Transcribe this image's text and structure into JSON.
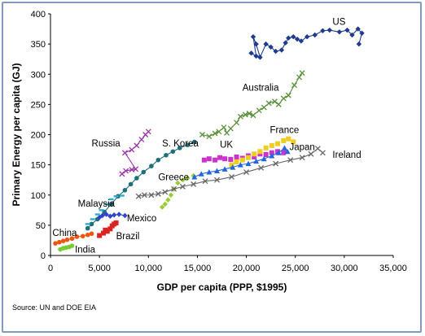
{
  "chart_data": {
    "type": "scatter",
    "title": "",
    "xlabel": "GDP per capita (PPP, $1995)",
    "ylabel": "Primary Energy per capita (GJ)",
    "xlim": [
      0,
      35000
    ],
    "ylim": [
      0,
      400
    ],
    "x_ticks": [
      "0",
      "5,000",
      "10,000",
      "15,000",
      "20,000",
      "25,000",
      "30,000",
      "35,000"
    ],
    "y_ticks": [
      "0",
      "50",
      "100",
      "150",
      "200",
      "250",
      "300",
      "350",
      "400"
    ],
    "grid": false,
    "series": [
      {
        "name": "US",
        "color": "#1f3a8f",
        "marker": "diamond",
        "connected": true,
        "points": [
          [
            20500,
            335
          ],
          [
            21000,
            330
          ],
          [
            20700,
            362
          ],
          [
            21000,
            350
          ],
          [
            21400,
            328
          ],
          [
            22000,
            350
          ],
          [
            22500,
            345
          ],
          [
            23000,
            338
          ],
          [
            23600,
            340
          ],
          [
            24000,
            352
          ],
          [
            24300,
            360
          ],
          [
            24800,
            362
          ],
          [
            25200,
            358
          ],
          [
            25600,
            355
          ],
          [
            26200,
            362
          ],
          [
            27000,
            365
          ],
          [
            27800,
            372
          ],
          [
            28500,
            373
          ],
          [
            29500,
            370
          ],
          [
            30300,
            373
          ],
          [
            30800,
            365
          ],
          [
            31400,
            375
          ],
          [
            31800,
            368
          ],
          [
            31500,
            350
          ]
        ]
      },
      {
        "name": "Australia",
        "color": "#5a8f3a",
        "marker": "x",
        "connected": true,
        "points": [
          [
            15500,
            200
          ],
          [
            16200,
            197
          ],
          [
            16800,
            202
          ],
          [
            17200,
            205
          ],
          [
            17700,
            212
          ],
          [
            18000,
            203
          ],
          [
            18400,
            210
          ],
          [
            19000,
            220
          ],
          [
            19400,
            230
          ],
          [
            19900,
            233
          ],
          [
            20300,
            235
          ],
          [
            20700,
            232
          ],
          [
            21300,
            240
          ],
          [
            21800,
            245
          ],
          [
            22300,
            252
          ],
          [
            22900,
            255
          ],
          [
            23300,
            250
          ],
          [
            23800,
            260
          ],
          [
            24300,
            265
          ],
          [
            24900,
            282
          ],
          [
            25400,
            295
          ],
          [
            25700,
            302
          ]
        ]
      },
      {
        "name": "Russia",
        "color": "#9933aa",
        "marker": "x",
        "connected": true,
        "points": [
          [
            7300,
            135
          ],
          [
            7700,
            140
          ],
          [
            8300,
            142
          ],
          [
            8700,
            143
          ],
          [
            7600,
            170
          ],
          [
            8300,
            175
          ],
          [
            8800,
            182
          ],
          [
            9300,
            192
          ],
          [
            9700,
            200
          ],
          [
            10000,
            205
          ]
        ]
      },
      {
        "name": "S. Korea",
        "color": "#1e6f7a",
        "marker": "circle",
        "connected": true,
        "points": [
          [
            3800,
            45
          ],
          [
            4200,
            52
          ],
          [
            4800,
            60
          ],
          [
            5500,
            72
          ],
          [
            6200,
            85
          ],
          [
            6900,
            98
          ],
          [
            7600,
            108
          ],
          [
            8200,
            118
          ],
          [
            8800,
            128
          ],
          [
            9500,
            138
          ],
          [
            10300,
            148
          ],
          [
            11000,
            158
          ],
          [
            11800,
            166
          ],
          [
            12500,
            172
          ],
          [
            13200,
            178
          ],
          [
            14000,
            183
          ],
          [
            14700,
            188
          ]
        ]
      },
      {
        "name": "Malaysia",
        "color": "#33aacc",
        "marker": "dash",
        "connected": false,
        "points": [
          [
            3800,
            52
          ],
          [
            4300,
            60
          ],
          [
            4800,
            68
          ],
          [
            5200,
            75
          ],
          [
            5700,
            85
          ],
          [
            6200,
            93
          ],
          [
            6700,
            98
          ],
          [
            7300,
            99
          ]
        ]
      },
      {
        "name": "Mexico",
        "color": "#3344cc",
        "marker": "diamond",
        "connected": true,
        "points": [
          [
            5000,
            63
          ],
          [
            5300,
            66
          ],
          [
            5700,
            68
          ],
          [
            6100,
            65
          ],
          [
            6500,
            67
          ],
          [
            7000,
            68
          ],
          [
            7600,
            66
          ]
        ]
      },
      {
        "name": "China",
        "color": "#ee5511",
        "marker": "circle",
        "connected": true,
        "points": [
          [
            500,
            20
          ],
          [
            900,
            22
          ],
          [
            1300,
            24
          ],
          [
            1700,
            26
          ],
          [
            2200,
            28
          ],
          [
            2700,
            31
          ],
          [
            3300,
            32
          ],
          [
            3800,
            34
          ],
          [
            4200,
            36
          ]
        ]
      },
      {
        "name": "India",
        "color": "#77cc33",
        "marker": "circle",
        "connected": true,
        "points": [
          [
            1000,
            10
          ],
          [
            1300,
            12
          ],
          [
            1600,
            13
          ],
          [
            1900,
            14
          ],
          [
            2200,
            16
          ]
        ]
      },
      {
        "name": "Brazil",
        "color": "#dd2222",
        "marker": "square",
        "connected": false,
        "points": [
          [
            5000,
            33
          ],
          [
            5400,
            37
          ],
          [
            5800,
            40
          ],
          [
            6100,
            44
          ],
          [
            6300,
            49
          ],
          [
            6500,
            52
          ],
          [
            6700,
            54
          ],
          [
            5600,
            42
          ]
        ]
      },
      {
        "name": "Greece",
        "color": "#99cc33",
        "marker": "diamond",
        "connected": false,
        "points": [
          [
            11400,
            80
          ],
          [
            11700,
            85
          ],
          [
            12000,
            92
          ],
          [
            12300,
            100
          ],
          [
            12600,
            110
          ],
          [
            13000,
            120
          ],
          [
            13500,
            125
          ],
          [
            14000,
            128
          ],
          [
            14600,
            132
          ]
        ]
      },
      {
        "name": "Ireland",
        "color": "#666666",
        "marker": "x",
        "connected": true,
        "points": [
          [
            9000,
            98
          ],
          [
            9600,
            100
          ],
          [
            10300,
            100
          ],
          [
            11000,
            102
          ],
          [
            11700,
            105
          ],
          [
            12600,
            110
          ],
          [
            13500,
            114
          ],
          [
            14600,
            118
          ],
          [
            15800,
            123
          ],
          [
            17000,
            125
          ],
          [
            18500,
            130
          ],
          [
            20000,
            138
          ],
          [
            21500,
            145
          ],
          [
            23000,
            152
          ],
          [
            24500,
            158
          ],
          [
            25700,
            162
          ],
          [
            26600,
            168
          ],
          [
            27300,
            177
          ],
          [
            27800,
            170
          ]
        ]
      },
      {
        "name": "UK",
        "color": "#cc33cc",
        "marker": "square",
        "connected": false,
        "points": [
          [
            15700,
            158
          ],
          [
            16200,
            160
          ],
          [
            16800,
            158
          ],
          [
            17300,
            162
          ],
          [
            17800,
            160
          ],
          [
            18400,
            159
          ],
          [
            19000,
            163
          ],
          [
            19600,
            161
          ],
          [
            20200,
            165
          ],
          [
            20800,
            163
          ],
          [
            21400,
            168
          ],
          [
            22000,
            167
          ],
          [
            22600,
            170
          ],
          [
            23200,
            172
          ],
          [
            23800,
            170
          ]
        ]
      },
      {
        "name": "France",
        "color": "#eecc22",
        "marker": "square",
        "connected": false,
        "points": [
          [
            18500,
            150
          ],
          [
            19000,
            155
          ],
          [
            19600,
            158
          ],
          [
            20200,
            162
          ],
          [
            20800,
            168
          ],
          [
            21400,
            172
          ],
          [
            22000,
            178
          ],
          [
            22600,
            182
          ],
          [
            23200,
            185
          ],
          [
            23800,
            190
          ],
          [
            24300,
            193
          ],
          [
            24800,
            188
          ]
        ]
      },
      {
        "name": "Japan",
        "color": "#2266dd",
        "marker": "triangle",
        "connected": true,
        "points": [
          [
            14700,
            130
          ],
          [
            15400,
            135
          ],
          [
            16200,
            138
          ],
          [
            17000,
            140
          ],
          [
            17800,
            143
          ],
          [
            18600,
            146
          ],
          [
            19400,
            150
          ],
          [
            20200,
            152
          ],
          [
            21000,
            156
          ],
          [
            21800,
            160
          ],
          [
            22600,
            165
          ],
          [
            23300,
            170
          ],
          [
            23900,
            178
          ],
          [
            24200,
            172
          ]
        ]
      }
    ],
    "annotations": [
      {
        "text": "US",
        "x": 28800,
        "y": 387
      },
      {
        "text": "Australia",
        "x": 19600,
        "y": 278
      },
      {
        "text": "France",
        "x": 22400,
        "y": 208
      },
      {
        "text": "Russia",
        "x": 4200,
        "y": 186
      },
      {
        "text": "S. Korea",
        "x": 11400,
        "y": 186
      },
      {
        "text": "UK",
        "x": 17300,
        "y": 184
      },
      {
        "text": "Japan",
        "x": 24400,
        "y": 180
      },
      {
        "text": "Ireland",
        "x": 28800,
        "y": 167
      },
      {
        "text": "Greece",
        "x": 11000,
        "y": 130
      },
      {
        "text": "Malaysia",
        "x": 2800,
        "y": 86
      },
      {
        "text": "Mexico",
        "x": 7800,
        "y": 62
      },
      {
        "text": "China",
        "x": 200,
        "y": 38
      },
      {
        "text": "Brazil",
        "x": 6700,
        "y": 32
      },
      {
        "text": "India",
        "x": 2500,
        "y": 10
      }
    ]
  },
  "source_text": "Source: UN and DOE EIA"
}
